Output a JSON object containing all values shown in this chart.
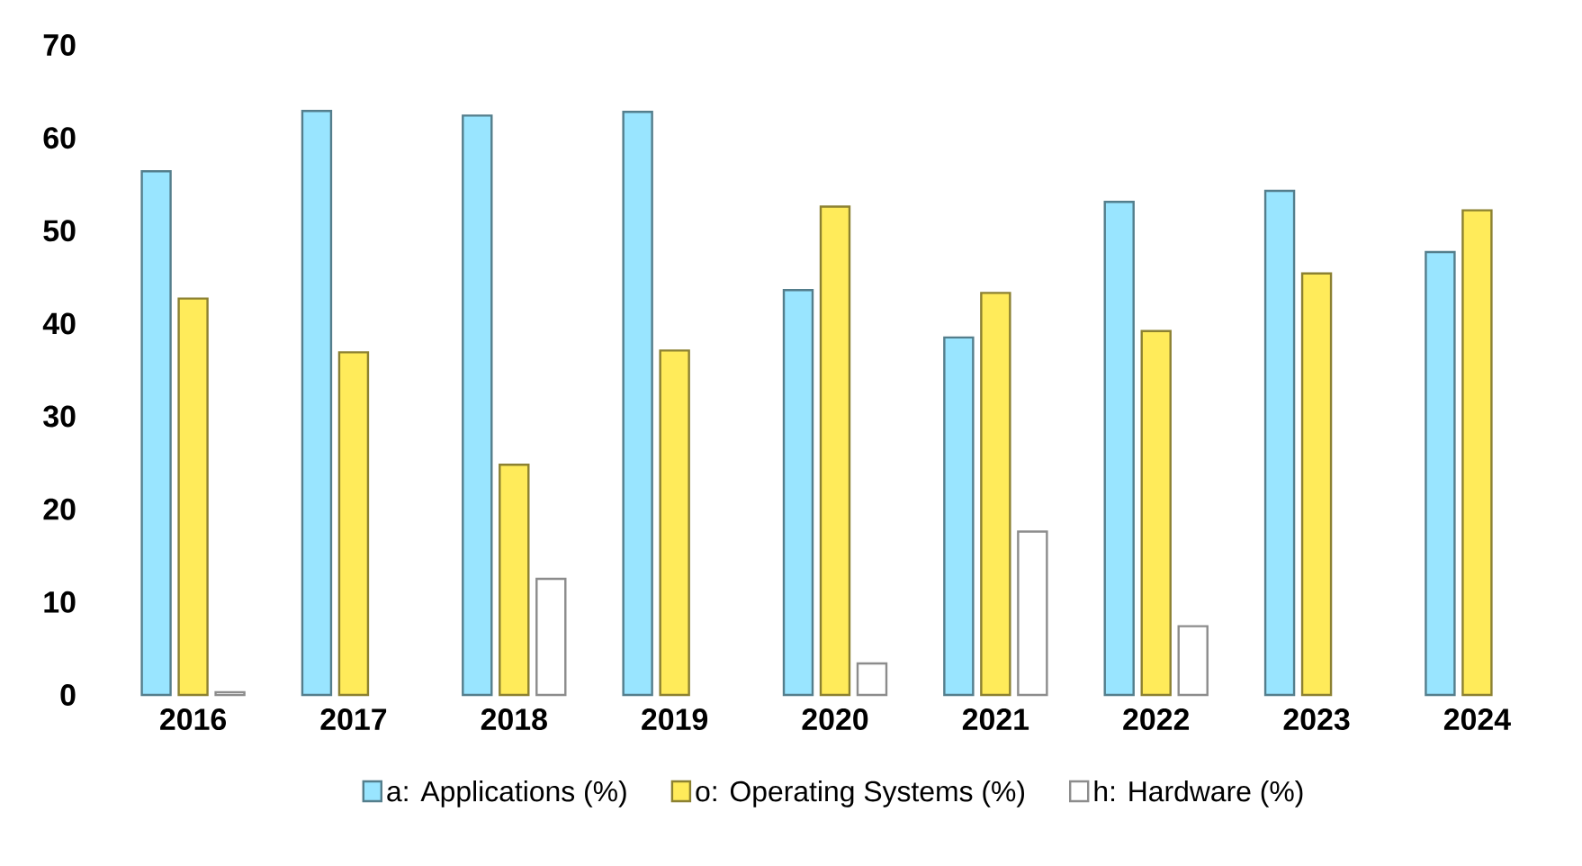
{
  "chart_data": {
    "type": "bar",
    "categories": [
      "2016",
      "2017",
      "2018",
      "2019",
      "2020",
      "2021",
      "2022",
      "2023",
      "2024"
    ],
    "series": [
      {
        "name": "a: Applications (%)",
        "color": "#99e5ff",
        "values": [
          56.4,
          62.9,
          62.4,
          62.8,
          43.6,
          38.5,
          53.1,
          54.3,
          47.7
        ]
      },
      {
        "name": "o: Operating Systems (%)",
        "color": "#ffeb5a",
        "values": [
          42.7,
          36.9,
          24.8,
          37.1,
          52.6,
          43.3,
          39.2,
          45.4,
          52.2
        ]
      },
      {
        "name": "h: Hardware (%)",
        "color": "#ffffff",
        "values": [
          0.3,
          null,
          12.5,
          null,
          3.4,
          17.6,
          7.4,
          null,
          null
        ]
      }
    ],
    "ylim": [
      0,
      70
    ],
    "yticks": [
      0,
      10,
      20,
      30,
      40,
      50,
      60,
      70
    ],
    "legend": "bottom"
  }
}
